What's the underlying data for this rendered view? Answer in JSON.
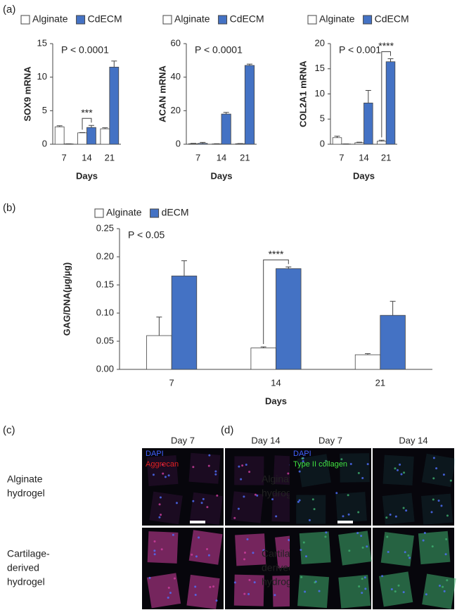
{
  "panel_labels": [
    "(a)",
    "(b)",
    "(c)",
    "(d)"
  ],
  "chart_data": [
    {
      "type": "bar",
      "ylabel": "SOX9 mRNA",
      "xlabel": "Days",
      "annotation": "P < 0.0001",
      "categories": [
        "7",
        "14",
        "21"
      ],
      "series": [
        {
          "name": "Alginate",
          "color": "#ffffff",
          "values": [
            2.6,
            1.7,
            2.3
          ],
          "errors": [
            0.15,
            0.05,
            0.15
          ]
        },
        {
          "name": "CdECM",
          "color": "#4472c4",
          "values": [
            0.05,
            2.5,
            11.5
          ],
          "errors": [
            0.02,
            0.3,
            0.9
          ]
        }
      ],
      "ylim": [
        0,
        15
      ],
      "yticks": [
        0,
        5,
        10,
        15
      ],
      "significance": {
        "label": "***",
        "category": "14"
      }
    },
    {
      "type": "bar",
      "ylabel": "ACAN mRNA",
      "xlabel": "Days",
      "annotation": "P < 0.0001",
      "categories": [
        "7",
        "14",
        "21"
      ],
      "series": [
        {
          "name": "Alginate",
          "color": "#ffffff",
          "values": [
            0.3,
            0.2,
            0.3
          ],
          "errors": [
            0.2,
            0.1,
            0.1
          ]
        },
        {
          "name": "CdECM",
          "color": "#4472c4",
          "values": [
            0.5,
            18,
            47
          ],
          "errors": [
            0.6,
            1,
            0.8
          ]
        }
      ],
      "ylim": [
        0,
        60
      ],
      "yticks": [
        0,
        20,
        40,
        60
      ]
    },
    {
      "type": "bar",
      "ylabel": "COL2A1 mRNA",
      "xlabel": "Days",
      "annotation": "P < 0.001",
      "categories": [
        "7",
        "14",
        "21"
      ],
      "series": [
        {
          "name": "Alginate",
          "color": "#ffffff",
          "values": [
            1.3,
            0.3,
            0.6
          ],
          "errors": [
            0.3,
            0.1,
            0.2
          ]
        },
        {
          "name": "CdECM",
          "color": "#4472c4",
          "values": [
            0.05,
            8.2,
            16.4
          ],
          "errors": [
            0.02,
            2.5,
            0.6
          ]
        }
      ],
      "ylim": [
        0,
        20
      ],
      "yticks": [
        0,
        5,
        10,
        15,
        20
      ],
      "significance": {
        "label": "****",
        "category": "21"
      }
    },
    {
      "type": "bar",
      "ylabel": "GAG/DNA(µg/µg)",
      "xlabel": "Days",
      "annotation": "P < 0.05",
      "categories": [
        "7",
        "14",
        "21"
      ],
      "series": [
        {
          "name": "Alginate",
          "color": "#ffffff",
          "values": [
            0.06,
            0.038,
            0.026
          ],
          "errors": [
            0.033,
            0.002,
            0.002
          ]
        },
        {
          "name": "dECM",
          "color": "#4472c4",
          "values": [
            0.166,
            0.179,
            0.096
          ],
          "errors": [
            0.027,
            0.003,
            0.025
          ]
        }
      ],
      "ylim": [
        0,
        0.25
      ],
      "yticks": [
        {
          "value": 0,
          "label": "0.00"
        },
        {
          "value": 0.05,
          "label": "0.05"
        },
        {
          "value": 0.1,
          "label": "0.10"
        },
        {
          "value": 0.15,
          "label": "0.15"
        },
        {
          "value": 0.2,
          "label": "0.20"
        },
        {
          "value": 0.25,
          "label": "0.25"
        }
      ],
      "significance": {
        "label": "****",
        "category": "14"
      }
    }
  ],
  "images": [
    {
      "columns": [
        "Day 7",
        "Day 14"
      ],
      "rows": [
        [
          "Alginate",
          "hydrogel"
        ],
        [
          "Cartilage-",
          "derived",
          "hydrogel"
        ]
      ],
      "channels": [
        "DAPI",
        "Aggrecan"
      ]
    },
    {
      "columns": [
        "Day 7",
        "Day 14"
      ],
      "rows": [
        [
          "Alginate",
          "hydrogel"
        ],
        [
          "Cartilage-",
          "derived",
          "hydrogel"
        ]
      ],
      "channels": [
        "DAPI",
        "Type II collagen"
      ]
    }
  ]
}
